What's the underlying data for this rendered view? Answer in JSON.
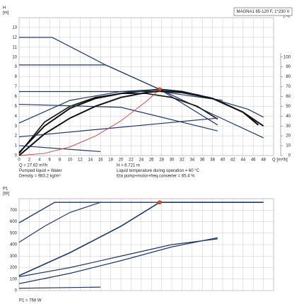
{
  "chart_data": [
    {
      "type": "line",
      "ylabel": [
        "H",
        "[m]"
      ],
      "y2label": [
        "eta",
        "[%]"
      ],
      "xlabel": "Q [m³/h]",
      "label_box": "MAGNA1 65-120 F, 1*230 V",
      "xlim": [
        0,
        50
      ],
      "xticks": [
        0,
        2,
        4,
        6,
        8,
        10,
        12,
        14,
        16,
        18,
        20,
        22,
        24,
        26,
        28,
        30,
        32,
        34,
        36,
        38,
        40,
        42,
        44,
        46,
        48
      ],
      "ylim": [
        0,
        14
      ],
      "yticks": [
        0,
        1,
        2,
        3,
        4,
        5,
        6,
        7,
        8,
        9,
        10,
        11,
        12,
        13
      ],
      "y2lim": [
        0,
        140
      ],
      "y2ticks": [
        0,
        10,
        20,
        30,
        40,
        50,
        60,
        70,
        80,
        90,
        100
      ],
      "grid": true,
      "xtick_labels": true,
      "series": [
        {
          "color": "#1f3864",
          "width": 1.2,
          "x": [
            0,
            6.5,
            17,
            27.62,
            38,
            48
          ],
          "values": [
            12,
            12,
            9.2,
            6.72,
            4.2,
            1.8
          ]
        },
        {
          "color": "#1f3864",
          "width": 1.2,
          "x": [
            0,
            17,
            27.62,
            39
          ],
          "values": [
            9.2,
            9.2,
            6.72,
            3.1
          ]
        },
        {
          "color": "#111111",
          "width": 2,
          "x": [
            0,
            5,
            10,
            15,
            20,
            25,
            27.62,
            32,
            38,
            44,
            48
          ],
          "values": [
            0.3,
            3,
            4.8,
            5.8,
            6.3,
            6.6,
            6.72,
            6.5,
            5.8,
            4.4,
            3
          ]
        },
        {
          "color": "#111111",
          "width": 1.6,
          "x": [
            0,
            5,
            10,
            15,
            20,
            25,
            30,
            35,
            39
          ],
          "values": [
            0.2,
            3.4,
            5,
            5.9,
            6.3,
            6.3,
            5.9,
            5,
            3.7
          ]
        },
        {
          "color": "#1f3864",
          "width": 1.2,
          "x": [
            0,
            10,
            20,
            27.62,
            35,
            45,
            48
          ],
          "values": [
            3.3,
            5.6,
            6.5,
            6.72,
            6.2,
            4.7,
            3.9
          ]
        },
        {
          "color": "#1f3864",
          "width": 1.2,
          "x": [
            0,
            27.62,
            40
          ],
          "values": [
            6.5,
            6.5,
            5.6
          ]
        },
        {
          "color": "#1f3864",
          "width": 1.2,
          "x": [
            0,
            20,
            39
          ],
          "values": [
            5.2,
            4.9,
            2.5
          ]
        },
        {
          "color": "#1f3864",
          "width": 1.2,
          "x": [
            0,
            39
          ],
          "values": [
            1.9,
            3.8
          ]
        },
        {
          "color": "#1f3864",
          "width": 1.2,
          "x": [
            0,
            16
          ],
          "values": [
            1,
            0.4
          ]
        },
        {
          "color": "#c0504d",
          "width": 1,
          "x": [
            0,
            5,
            10,
            15,
            20,
            25,
            27.62
          ],
          "values": [
            0,
            0.22,
            0.88,
            1.98,
            3.52,
            5.5,
            6.72
          ]
        },
        {
          "color": "#111111",
          "width": 2,
          "axis": "y2",
          "x": [
            0,
            5,
            10,
            15,
            20,
            25,
            27.62,
            32,
            38,
            44,
            47
          ],
          "values": [
            0,
            22,
            38,
            50,
            59,
            64,
            65.4,
            64,
            58,
            44,
            31
          ]
        }
      ],
      "marker": {
        "x": 27.62,
        "y": 6.721,
        "color": "#e05020"
      },
      "annotations": [
        "Q = 27.62 m³/h",
        "Pumped liquid = Water",
        "Density = 983.2 kg/m³",
        "H = 6.721 m",
        "Liquid temperature during operation = 60 °C",
        "Eta pump+motor+freq.converter = 65.4 %"
      ]
    },
    {
      "type": "line",
      "ylabel": [
        "P1",
        "[W]"
      ],
      "xlim": [
        0,
        50
      ],
      "xticks": [
        0,
        2,
        4,
        6,
        8,
        10,
        12,
        14,
        16,
        18,
        20,
        22,
        24,
        26,
        28,
        30,
        32,
        34,
        36,
        38,
        40,
        42,
        44,
        46,
        48
      ],
      "ylim": [
        0,
        800
      ],
      "yticks": [
        0,
        100,
        200,
        300,
        400,
        500,
        600,
        700
      ],
      "grid": true,
      "xtick_labels": false,
      "series": [
        {
          "color": "#1f3864",
          "width": 1.4,
          "x": [
            0,
            7,
            48
          ],
          "values": [
            590,
            768,
            768
          ]
        },
        {
          "color": "#1f3864",
          "width": 1.6,
          "x": [
            0,
            10,
            20,
            27.62,
            40,
            48
          ],
          "values": [
            130,
            330,
            560,
            768,
            768,
            768
          ]
        },
        {
          "color": "#1f3864",
          "width": 1.2,
          "x": [
            0,
            5,
            10,
            16
          ],
          "values": [
            420,
            560,
            680,
            768
          ]
        },
        {
          "color": "#1f3864",
          "width": 1.2,
          "x": [
            0,
            10,
            20,
            30,
            39
          ],
          "values": [
            120,
            200,
            300,
            400,
            450
          ]
        },
        {
          "color": "#1f3864",
          "width": 1.2,
          "x": [
            0,
            10,
            20,
            30,
            39
          ],
          "values": [
            60,
            150,
            260,
            380,
            460
          ]
        },
        {
          "color": "#1f3864",
          "width": 1.2,
          "x": [
            0,
            16
          ],
          "values": [
            20,
            30
          ]
        }
      ],
      "marker": {
        "x": 27.62,
        "y": 768,
        "color": "#e05020"
      },
      "annotations": [
        "P1 = 768 W"
      ]
    }
  ]
}
